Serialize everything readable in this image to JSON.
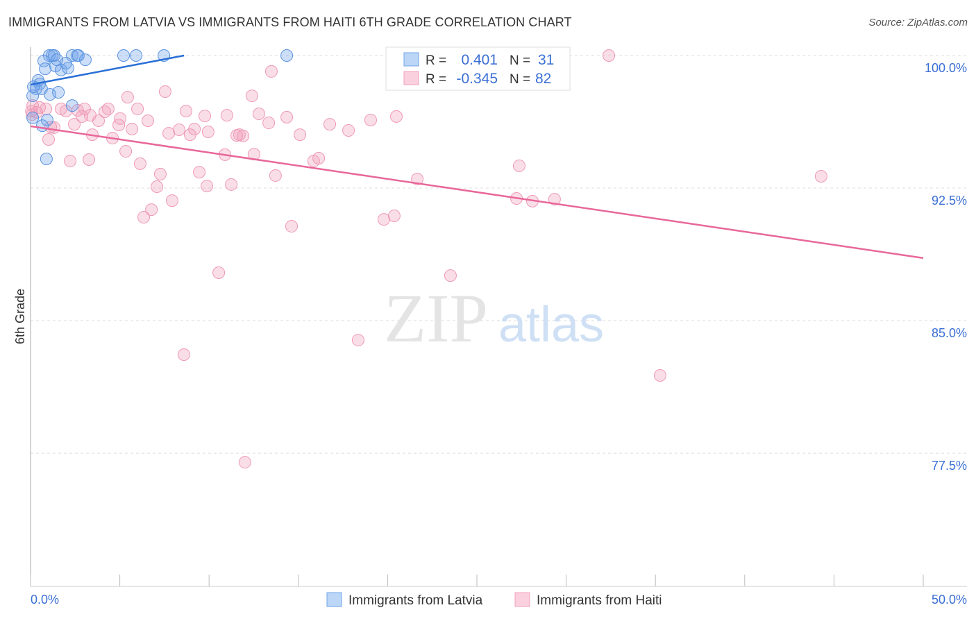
{
  "title": "IMMIGRANTS FROM LATVIA VS IMMIGRANTS FROM HAITI 6TH GRADE CORRELATION CHART",
  "source": "Source: ZipAtlas.com",
  "watermark": "ZIPatlas",
  "colors": {
    "latvia": "#6fa4ea",
    "latvia_line": "#2a6fd6",
    "haiti": "#f2a0bb",
    "haiti_line": "#e8679a",
    "accent_text": "#3b6fd4"
  },
  "legend_box": {
    "rows": [
      {
        "r_label": "R =",
        "r_value": "0.401",
        "n_label": "N =",
        "n_value": "31"
      },
      {
        "r_label": "R =",
        "r_value": "-0.345",
        "n_label": "N =",
        "n_value": "82"
      }
    ]
  },
  "chart_data": {
    "type": "scatter",
    "title": "IMMIGRANTS FROM LATVIA VS IMMIGRANTS FROM HAITI 6TH GRADE CORRELATION CHART",
    "xlabel": "",
    "ylabel": "6th Grade",
    "xlim": [
      0,
      50
    ],
    "ylim": [
      70,
      100.5
    ],
    "x_tick_labels": [
      "0.0%",
      "50.0%"
    ],
    "y_ticks": [
      100,
      92.5,
      85,
      77.5
    ],
    "y_tick_labels": [
      "100.0%",
      "92.5%",
      "85.0%",
      "77.5%"
    ],
    "legend": [
      "Immigrants from Latvia",
      "Immigrants from Haiti"
    ],
    "series": [
      {
        "name": "Immigrants from Latvia",
        "trend": [
          [
            0,
            98.35
          ],
          [
            8.6,
            100
          ]
        ],
        "points": [
          [
            1.05,
            100
          ],
          [
            1.21,
            100
          ],
          [
            1.32,
            100
          ],
          [
            2.33,
            100
          ],
          [
            2.61,
            100
          ],
          [
            2.68,
            100
          ],
          [
            5.21,
            100
          ],
          [
            5.91,
            100
          ],
          [
            7.47,
            100
          ],
          [
            14.35,
            100
          ],
          [
            0.74,
            99.69
          ],
          [
            1.48,
            99.76
          ],
          [
            3.07,
            99.76
          ],
          [
            0.82,
            99.25
          ],
          [
            1.4,
            99.41
          ],
          [
            1.71,
            99.18
          ],
          [
            2.1,
            99.29
          ],
          [
            1.98,
            99.57
          ],
          [
            0.43,
            98.59
          ],
          [
            0.51,
            98.39
          ],
          [
            0.31,
            98.12
          ],
          [
            0.62,
            98.12
          ],
          [
            1.09,
            97.8
          ],
          [
            1.56,
            97.92
          ],
          [
            0.12,
            97.72
          ],
          [
            2.33,
            97.17
          ],
          [
            0.93,
            96.35
          ],
          [
            0.66,
            96.03
          ],
          [
            0.89,
            94.15
          ],
          [
            0.12,
            96.47
          ],
          [
            0.16,
            98.23
          ]
        ]
      },
      {
        "name": "Immigrants from Haiti",
        "trend": [
          [
            0,
            96.0
          ],
          [
            50,
            88.54
          ]
        ],
        "points": [
          [
            32.39,
            100
          ],
          [
            13.49,
            99.1
          ],
          [
            5.44,
            97.64
          ],
          [
            7.54,
            97.96
          ],
          [
            12.4,
            97.72
          ],
          [
            0.12,
            97.17
          ],
          [
            0.51,
            97.06
          ],
          [
            0.86,
            96.98
          ],
          [
            1.71,
            96.98
          ],
          [
            1.98,
            96.86
          ],
          [
            2.64,
            96.9
          ],
          [
            3.03,
            96.98
          ],
          [
            4.16,
            96.82
          ],
          [
            4.35,
            96.98
          ],
          [
            5.99,
            96.98
          ],
          [
            8.71,
            96.86
          ],
          [
            9.76,
            96.58
          ],
          [
            11.0,
            96.62
          ],
          [
            12.79,
            96.7
          ],
          [
            14.35,
            96.51
          ],
          [
            20.49,
            96.55
          ],
          [
            19.05,
            96.35
          ],
          [
            16.76,
            96.11
          ],
          [
            17.81,
            95.76
          ],
          [
            13.34,
            96.19
          ],
          [
            11.7,
            95.52
          ],
          [
            11.55,
            95.48
          ],
          [
            11.9,
            95.45
          ],
          [
            9.95,
            95.68
          ],
          [
            9.18,
            95.84
          ],
          [
            8.32,
            95.8
          ],
          [
            7.74,
            95.6
          ],
          [
            8.94,
            95.52
          ],
          [
            6.57,
            96.31
          ],
          [
            5.68,
            95.84
          ],
          [
            4.94,
            96.07
          ],
          [
            3.81,
            96.31
          ],
          [
            2.88,
            96.55
          ],
          [
            2.45,
            96.11
          ],
          [
            1.32,
            95.92
          ],
          [
            1.13,
            95.96
          ],
          [
            3.46,
            95.52
          ],
          [
            4.59,
            95.33
          ],
          [
            1.01,
            95.25
          ],
          [
            5.33,
            94.58
          ],
          [
            2.22,
            94.03
          ],
          [
            3.27,
            94.11
          ],
          [
            6.14,
            93.88
          ],
          [
            7.27,
            93.29
          ],
          [
            9.45,
            93.4
          ],
          [
            10.89,
            94.39
          ],
          [
            12.52,
            94.42
          ],
          [
            13.72,
            93.21
          ],
          [
            15.09,
            95.52
          ],
          [
            15.86,
            94.03
          ],
          [
            16.14,
            94.19
          ],
          [
            7.08,
            92.58
          ],
          [
            9.88,
            92.62
          ],
          [
            11.24,
            92.7
          ],
          [
            7.93,
            91.79
          ],
          [
            6.77,
            91.28
          ],
          [
            6.34,
            90.85
          ],
          [
            14.62,
            90.34
          ],
          [
            19.79,
            90.73
          ],
          [
            20.37,
            90.93
          ],
          [
            21.66,
            93.01
          ],
          [
            27.37,
            93.76
          ],
          [
            27.22,
            91.91
          ],
          [
            28.11,
            91.76
          ],
          [
            29.35,
            91.87
          ],
          [
            44.28,
            93.17
          ],
          [
            23.52,
            87.55
          ],
          [
            10.54,
            87.71
          ],
          [
            18.35,
            83.9
          ],
          [
            8.59,
            83.08
          ],
          [
            35.26,
            81.9
          ],
          [
            12.01,
            76.99
          ],
          [
            0.08,
            96.66
          ],
          [
            0.35,
            96.78
          ],
          [
            3.34,
            96.62
          ],
          [
            5.02,
            96.43
          ],
          [
            0.05,
            96.85
          ]
        ]
      }
    ]
  }
}
